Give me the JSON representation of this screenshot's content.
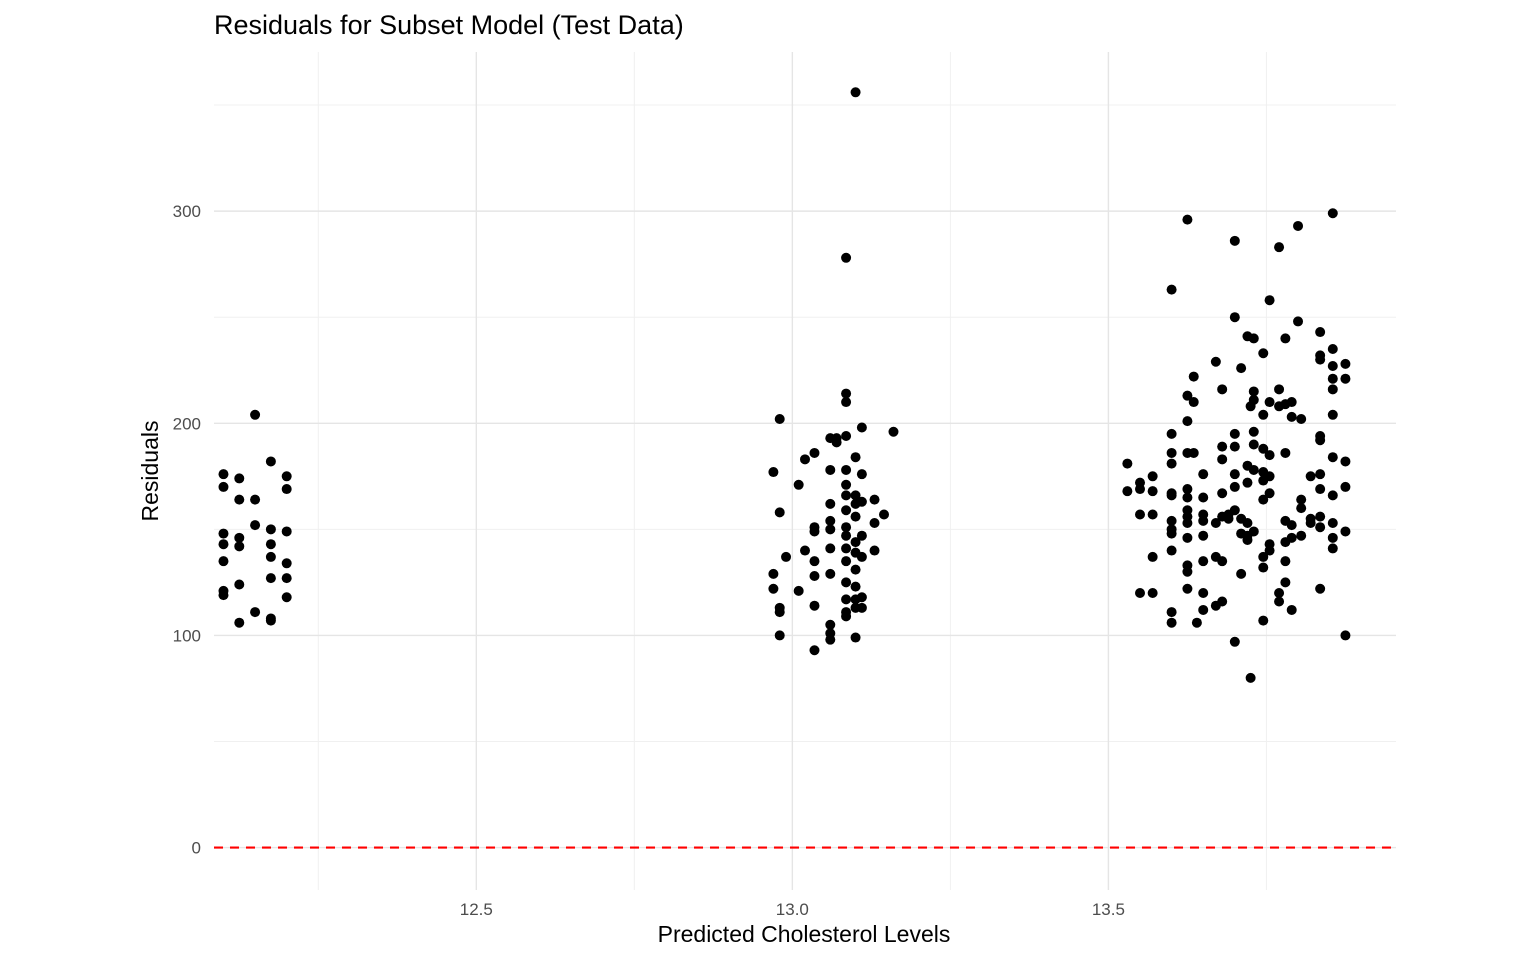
{
  "chart_data": {
    "type": "scatter",
    "title": "Residuals for Subset Model (Test Data)",
    "xlabel": "Predicted Cholesterol Levels",
    "ylabel": "Residuals",
    "xlim": [
      12.085,
      13.955
    ],
    "ylim": [
      -20,
      375
    ],
    "x_ticks": [
      12.5,
      13.0,
      13.5
    ],
    "x_tick_labels": [
      "12.5",
      "13.0",
      "13.5"
    ],
    "x_minor_ticks": [
      12.25,
      12.75,
      13.25,
      13.75
    ],
    "y_ticks": [
      0,
      100,
      200,
      300
    ],
    "y_tick_labels": [
      "0",
      "100",
      "200",
      "300"
    ],
    "y_minor_ticks": [
      50,
      150,
      250,
      350
    ],
    "grid": true,
    "point_color": "#000000",
    "reference_line": {
      "y": 0,
      "style": "dashed",
      "color": "#ff0000"
    },
    "series": [
      {
        "points": [
          [
            12.15,
            204
          ],
          [
            12.1,
            176
          ],
          [
            12.1,
            170
          ],
          [
            12.1,
            148
          ],
          [
            12.1,
            143
          ],
          [
            12.1,
            135
          ],
          [
            12.1,
            121
          ],
          [
            12.1,
            119
          ],
          [
            12.125,
            174
          ],
          [
            12.125,
            164
          ],
          [
            12.125,
            146
          ],
          [
            12.125,
            142
          ],
          [
            12.125,
            124
          ],
          [
            12.125,
            106
          ],
          [
            12.15,
            164
          ],
          [
            12.15,
            152
          ],
          [
            12.15,
            111
          ],
          [
            12.175,
            182
          ],
          [
            12.175,
            150
          ],
          [
            12.175,
            143
          ],
          [
            12.175,
            137
          ],
          [
            12.175,
            127
          ],
          [
            12.175,
            108
          ],
          [
            12.175,
            107
          ],
          [
            12.2,
            175
          ],
          [
            12.2,
            169
          ],
          [
            12.2,
            149
          ],
          [
            12.2,
            134
          ],
          [
            12.2,
            127
          ],
          [
            12.2,
            118
          ],
          [
            13.1,
            356
          ],
          [
            13.085,
            278
          ],
          [
            12.98,
            202
          ],
          [
            12.97,
            177
          ],
          [
            12.98,
            158
          ],
          [
            12.97,
            129
          ],
          [
            12.97,
            122
          ],
          [
            12.98,
            113
          ],
          [
            12.98,
            111
          ],
          [
            12.98,
            100
          ],
          [
            12.99,
            137
          ],
          [
            13.01,
            171
          ],
          [
            13.01,
            121
          ],
          [
            13.02,
            183
          ],
          [
            13.02,
            140
          ],
          [
            13.035,
            186
          ],
          [
            13.035,
            151
          ],
          [
            13.035,
            149
          ],
          [
            13.035,
            135
          ],
          [
            13.035,
            128
          ],
          [
            13.035,
            114
          ],
          [
            13.035,
            93
          ],
          [
            13.06,
            193
          ],
          [
            13.06,
            178
          ],
          [
            13.06,
            162
          ],
          [
            13.06,
            154
          ],
          [
            13.06,
            150
          ],
          [
            13.06,
            141
          ],
          [
            13.06,
            129
          ],
          [
            13.06,
            105
          ],
          [
            13.06,
            101
          ],
          [
            13.06,
            98
          ],
          [
            13.07,
            191
          ],
          [
            13.07,
            193
          ],
          [
            13.085,
            214
          ],
          [
            13.085,
            210
          ],
          [
            13.085,
            194
          ],
          [
            13.085,
            178
          ],
          [
            13.085,
            171
          ],
          [
            13.085,
            166
          ],
          [
            13.085,
            159
          ],
          [
            13.085,
            151
          ],
          [
            13.085,
            147
          ],
          [
            13.085,
            141
          ],
          [
            13.085,
            135
          ],
          [
            13.085,
            125
          ],
          [
            13.085,
            117
          ],
          [
            13.085,
            111
          ],
          [
            13.085,
            109
          ],
          [
            13.1,
            184
          ],
          [
            13.1,
            166
          ],
          [
            13.1,
            162
          ],
          [
            13.1,
            156
          ],
          [
            13.1,
            144
          ],
          [
            13.1,
            139
          ],
          [
            13.1,
            131
          ],
          [
            13.1,
            123
          ],
          [
            13.1,
            117
          ],
          [
            13.1,
            113
          ],
          [
            13.1,
            99
          ],
          [
            13.11,
            198
          ],
          [
            13.11,
            176
          ],
          [
            13.11,
            163
          ],
          [
            13.11,
            147
          ],
          [
            13.11,
            137
          ],
          [
            13.11,
            118
          ],
          [
            13.11,
            113
          ],
          [
            13.13,
            164
          ],
          [
            13.13,
            153
          ],
          [
            13.13,
            140
          ],
          [
            13.145,
            157
          ],
          [
            13.16,
            196
          ],
          [
            13.53,
            181
          ],
          [
            13.53,
            168
          ],
          [
            13.55,
            172
          ],
          [
            13.55,
            169
          ],
          [
            13.55,
            157
          ],
          [
            13.55,
            120
          ],
          [
            13.57,
            175
          ],
          [
            13.57,
            168
          ],
          [
            13.57,
            157
          ],
          [
            13.57,
            137
          ],
          [
            13.57,
            120
          ],
          [
            13.6,
            263
          ],
          [
            13.6,
            195
          ],
          [
            13.6,
            186
          ],
          [
            13.6,
            181
          ],
          [
            13.6,
            167
          ],
          [
            13.6,
            166
          ],
          [
            13.6,
            154
          ],
          [
            13.6,
            150
          ],
          [
            13.6,
            148
          ],
          [
            13.6,
            140
          ],
          [
            13.6,
            111
          ],
          [
            13.6,
            106
          ],
          [
            13.625,
            296
          ],
          [
            13.625,
            213
          ],
          [
            13.625,
            201
          ],
          [
            13.625,
            186
          ],
          [
            13.625,
            169
          ],
          [
            13.625,
            165
          ],
          [
            13.625,
            159
          ],
          [
            13.625,
            156
          ],
          [
            13.625,
            153
          ],
          [
            13.625,
            146
          ],
          [
            13.625,
            133
          ],
          [
            13.625,
            130
          ],
          [
            13.625,
            122
          ],
          [
            13.635,
            222
          ],
          [
            13.635,
            210
          ],
          [
            13.635,
            186
          ],
          [
            13.64,
            106
          ],
          [
            13.65,
            176
          ],
          [
            13.65,
            165
          ],
          [
            13.65,
            157
          ],
          [
            13.65,
            154
          ],
          [
            13.65,
            147
          ],
          [
            13.65,
            135
          ],
          [
            13.65,
            120
          ],
          [
            13.65,
            112
          ],
          [
            13.67,
            229
          ],
          [
            13.67,
            153
          ],
          [
            13.67,
            137
          ],
          [
            13.67,
            114
          ],
          [
            13.68,
            216
          ],
          [
            13.68,
            189
          ],
          [
            13.68,
            183
          ],
          [
            13.68,
            167
          ],
          [
            13.68,
            156
          ],
          [
            13.68,
            135
          ],
          [
            13.68,
            116
          ],
          [
            13.69,
            155
          ],
          [
            13.69,
            157
          ],
          [
            13.7,
            286
          ],
          [
            13.7,
            250
          ],
          [
            13.7,
            195
          ],
          [
            13.7,
            189
          ],
          [
            13.7,
            176
          ],
          [
            13.7,
            170
          ],
          [
            13.7,
            159
          ],
          [
            13.7,
            97
          ],
          [
            13.71,
            226
          ],
          [
            13.71,
            155
          ],
          [
            13.71,
            148
          ],
          [
            13.71,
            129
          ],
          [
            13.72,
            241
          ],
          [
            13.72,
            180
          ],
          [
            13.72,
            172
          ],
          [
            13.72,
            153
          ],
          [
            13.72,
            147
          ],
          [
            13.72,
            145
          ],
          [
            13.725,
            80
          ],
          [
            13.725,
            208
          ],
          [
            13.73,
            240
          ],
          [
            13.73,
            215
          ],
          [
            13.73,
            211
          ],
          [
            13.73,
            196
          ],
          [
            13.73,
            190
          ],
          [
            13.73,
            178
          ],
          [
            13.73,
            149
          ],
          [
            13.745,
            233
          ],
          [
            13.745,
            204
          ],
          [
            13.745,
            188
          ],
          [
            13.745,
            177
          ],
          [
            13.745,
            173
          ],
          [
            13.745,
            164
          ],
          [
            13.745,
            137
          ],
          [
            13.745,
            132
          ],
          [
            13.745,
            107
          ],
          [
            13.755,
            258
          ],
          [
            13.755,
            210
          ],
          [
            13.755,
            185
          ],
          [
            13.755,
            175
          ],
          [
            13.755,
            167
          ],
          [
            13.755,
            143
          ],
          [
            13.755,
            140
          ],
          [
            13.77,
            283
          ],
          [
            13.77,
            216
          ],
          [
            13.77,
            208
          ],
          [
            13.77,
            120
          ],
          [
            13.77,
            116
          ],
          [
            13.78,
            240
          ],
          [
            13.78,
            209
          ],
          [
            13.78,
            186
          ],
          [
            13.78,
            154
          ],
          [
            13.78,
            144
          ],
          [
            13.78,
            135
          ],
          [
            13.78,
            125
          ],
          [
            13.79,
            210
          ],
          [
            13.79,
            203
          ],
          [
            13.79,
            152
          ],
          [
            13.79,
            146
          ],
          [
            13.79,
            112
          ],
          [
            13.8,
            248
          ],
          [
            13.8,
            293
          ],
          [
            13.805,
            202
          ],
          [
            13.805,
            164
          ],
          [
            13.805,
            160
          ],
          [
            13.805,
            147
          ],
          [
            13.82,
            175
          ],
          [
            13.82,
            155
          ],
          [
            13.82,
            153
          ],
          [
            13.835,
            243
          ],
          [
            13.835,
            232
          ],
          [
            13.835,
            230
          ],
          [
            13.835,
            194
          ],
          [
            13.835,
            192
          ],
          [
            13.835,
            176
          ],
          [
            13.835,
            169
          ],
          [
            13.835,
            156
          ],
          [
            13.835,
            151
          ],
          [
            13.835,
            122
          ],
          [
            13.855,
            299
          ],
          [
            13.855,
            235
          ],
          [
            13.855,
            227
          ],
          [
            13.855,
            221
          ],
          [
            13.855,
            216
          ],
          [
            13.855,
            204
          ],
          [
            13.855,
            184
          ],
          [
            13.855,
            166
          ],
          [
            13.855,
            153
          ],
          [
            13.855,
            146
          ],
          [
            13.855,
            141
          ],
          [
            13.875,
            228
          ],
          [
            13.875,
            221
          ],
          [
            13.875,
            182
          ],
          [
            13.875,
            170
          ],
          [
            13.875,
            149
          ],
          [
            13.875,
            100
          ]
        ]
      }
    ]
  }
}
